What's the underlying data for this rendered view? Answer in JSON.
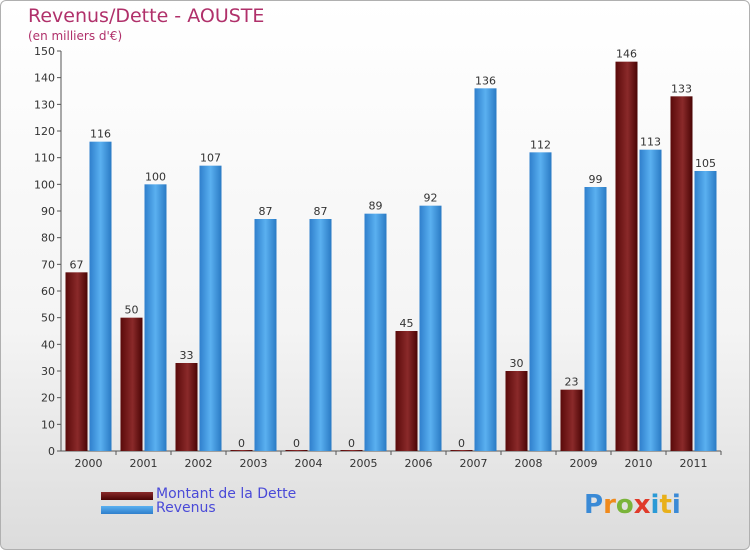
{
  "chart_data": {
    "type": "bar",
    "title": "Revenus/Dette - AOUSTE",
    "subtitle": "(en milliers d'€)",
    "categories": [
      "2000",
      "2001",
      "2002",
      "2003",
      "2004",
      "2005",
      "2006",
      "2007",
      "2008",
      "2009",
      "2010",
      "2011"
    ],
    "series": [
      {
        "name": "Montant de la Dette",
        "color": "#7a1a1a",
        "values": [
          67,
          50,
          33,
          0,
          0,
          0,
          45,
          0,
          30,
          23,
          146,
          133
        ]
      },
      {
        "name": "Revenus",
        "color": "#3f9ee8",
        "values": [
          116,
          100,
          107,
          87,
          87,
          89,
          92,
          136,
          112,
          99,
          113,
          105
        ]
      }
    ],
    "ylim": [
      0,
      150
    ],
    "yticks": [
      0,
      10,
      20,
      30,
      40,
      50,
      60,
      70,
      80,
      90,
      100,
      110,
      120,
      130,
      140,
      150
    ],
    "grid": false,
    "legend_position": "bottom-left"
  },
  "logo": {
    "text": "Proxiti",
    "letters": [
      "P",
      "r",
      "o",
      "x",
      "i",
      "t",
      "i"
    ]
  }
}
